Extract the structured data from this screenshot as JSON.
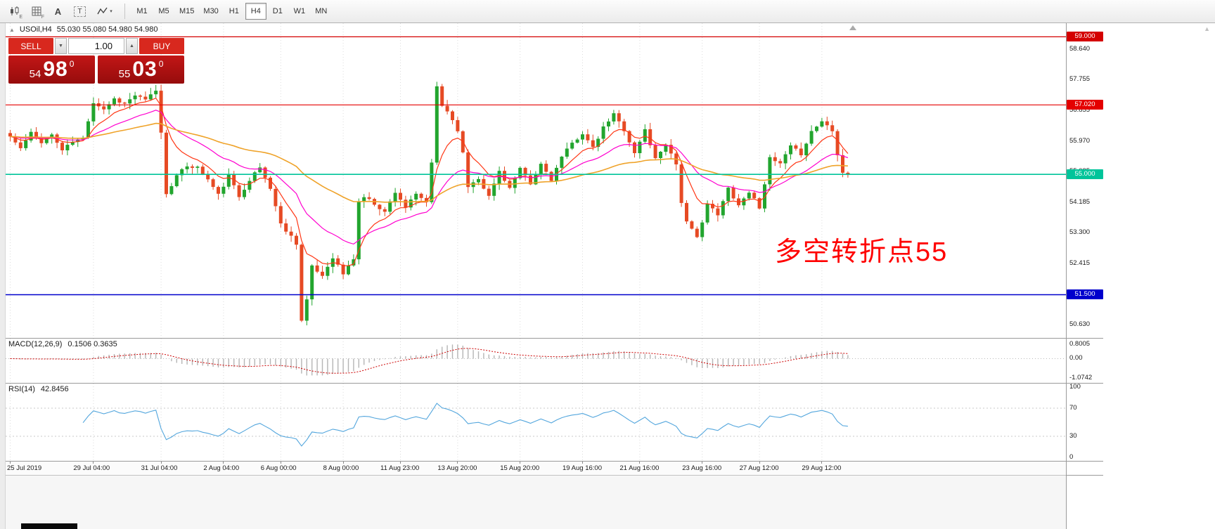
{
  "header": {
    "symbol": "USOil,H4",
    "ohlc": "55.030 55.080 54.980 54.980"
  },
  "toolbar": {
    "icons": [
      {
        "name": "chart-type-icon",
        "sub": "E"
      },
      {
        "name": "grid-icon",
        "sub": "F"
      },
      {
        "name": "text-annotation-icon",
        "glyph": "A"
      },
      {
        "name": "textbox-icon",
        "glyph": "T"
      },
      {
        "name": "drawing-tools-icon",
        "caret": "▾"
      }
    ],
    "timeframes": [
      {
        "label": "M1",
        "active": false
      },
      {
        "label": "M5",
        "active": false
      },
      {
        "label": "M15",
        "active": false
      },
      {
        "label": "M30",
        "active": false
      },
      {
        "label": "H1",
        "active": false
      },
      {
        "label": "H4",
        "active": true
      },
      {
        "label": "D1",
        "active": false
      },
      {
        "label": "W1",
        "active": false
      },
      {
        "label": "MN",
        "active": false
      }
    ]
  },
  "trade_panel": {
    "sell_label": "SELL",
    "buy_label": "BUY",
    "volume": "1.00",
    "sell_small": "54",
    "sell_big": "98",
    "sell_sup": "0",
    "buy_small": "55",
    "buy_big": "03",
    "buy_sup": "0"
  },
  "annotation": {
    "text": "多空转折点55",
    "color": "#ff0000"
  },
  "price_scale": {
    "ticks": [
      {
        "label": "58.640",
        "value": 58.64
      },
      {
        "label": "57.755",
        "value": 57.755
      },
      {
        "label": "56.855",
        "value": 56.855
      },
      {
        "label": "55.970",
        "value": 55.97
      },
      {
        "label": "55.085",
        "value": 55.085
      },
      {
        "label": "54.185",
        "value": 54.185
      },
      {
        "label": "53.300",
        "value": 53.3
      },
      {
        "label": "52.415",
        "value": 52.415
      },
      {
        "label": "51.530",
        "value": 51.53
      },
      {
        "label": "50.630",
        "value": 50.63
      }
    ],
    "badges": [
      {
        "label": "59.000",
        "value": 59.0,
        "bg": "#d40000"
      },
      {
        "label": "57.020",
        "value": 57.02,
        "bg": "#e40000"
      },
      {
        "label": "55.000",
        "value": 55.0,
        "bg": "#00c49a"
      },
      {
        "label": "51.500",
        "value": 51.5,
        "bg": "#0000cd"
      }
    ]
  },
  "macd_panel": {
    "label": "MACD(12,26,9)",
    "values": "0.1506 0.3635",
    "scale": [
      {
        "label": "0.8005",
        "value": 0.8005
      },
      {
        "label": "0.00",
        "value": 0
      },
      {
        "label": "-1.0742",
        "value": -1.0742
      }
    ]
  },
  "rsi_panel": {
    "label": "RSI(14)",
    "value": "42.8456",
    "scale": [
      {
        "label": "100",
        "value": 100
      },
      {
        "label": "70",
        "value": 70
      },
      {
        "label": "30",
        "value": 30
      },
      {
        "label": "0",
        "value": 0
      }
    ],
    "levels": [
      70,
      30
    ]
  },
  "time_axis": {
    "ticks": [
      {
        "i": 0,
        "label": "25 Jul 2019"
      },
      {
        "i": 16,
        "label": "29 Jul 04:00"
      },
      {
        "i": 29,
        "label": "31 Jul 04:00"
      },
      {
        "i": 41,
        "label": "2 Aug 04:00"
      },
      {
        "i": 52,
        "label": "6 Aug 00:00"
      },
      {
        "i": 64,
        "label": "8 Aug 00:00"
      },
      {
        "i": 75,
        "label": "11 Aug 23:00"
      },
      {
        "i": 86,
        "label": "13 Aug 20:00"
      },
      {
        "i": 98,
        "label": "15 Aug 20:00"
      },
      {
        "i": 110,
        "label": "19 Aug 16:00"
      },
      {
        "i": 121,
        "label": "21 Aug 16:00"
      },
      {
        "i": 133,
        "label": "23 Aug 16:00"
      },
      {
        "i": 144,
        "label": "27 Aug 12:00"
      },
      {
        "i": 156,
        "label": "29 Aug 12:00"
      }
    ]
  },
  "colors": {
    "up": "#22a52e",
    "down": "#e64a24",
    "ma_fast": "#ff3614",
    "ma_mid": "#ff00cf",
    "ma_slow": "#efa32a",
    "macd_hist": "#b5b5b5",
    "macd_signal": "#cc0000",
    "rsi": "#53a6dd",
    "grid": "#dcdcdc",
    "sell_buy_red": "#d8281e",
    "big_box_red": "#b11111",
    "annotation": "#ff0000"
  },
  "chart_data": {
    "type": "candlestick",
    "symbol": "USOil",
    "timeframe": "H4",
    "ohlc_current": {
      "open": 55.03,
      "high": 55.08,
      "low": 54.98,
      "close": 54.98
    },
    "bid": 54.98,
    "ask": 55.03,
    "count": 162,
    "seed": 11,
    "y_range": [
      50.243,
      59.396
    ],
    "ma_periods": [
      8,
      21,
      55
    ],
    "hlines": [
      59.0,
      57.02,
      55.0,
      51.5
    ],
    "macd": {
      "fast": 12,
      "slow": 26,
      "signal": 9,
      "current_macd": 0.1506,
      "current_signal": 0.3635,
      "range": [
        -1.0742,
        0.8005
      ]
    },
    "rsi": {
      "period": 14,
      "current": 42.8456,
      "levels": [
        70,
        30
      ]
    },
    "price_pivots": [
      [
        0,
        56.1
      ],
      [
        2,
        55.75
      ],
      [
        4,
        56.2
      ],
      [
        6,
        55.95
      ],
      [
        8,
        56.15
      ],
      [
        10,
        55.7
      ],
      [
        12,
        55.95
      ],
      [
        14,
        56.05
      ],
      [
        16,
        57.1
      ],
      [
        18,
        56.9
      ],
      [
        20,
        57.2
      ],
      [
        22,
        57.05
      ],
      [
        24,
        57.3
      ],
      [
        26,
        57.15
      ],
      [
        28,
        57.45
      ],
      [
        29,
        56.2
      ],
      [
        30,
        54.45
      ],
      [
        32,
        54.95
      ],
      [
        34,
        55.25
      ],
      [
        36,
        55.2
      ],
      [
        38,
        54.85
      ],
      [
        40,
        54.4
      ],
      [
        42,
        54.95
      ],
      [
        44,
        54.35
      ],
      [
        46,
        54.85
      ],
      [
        48,
        55.2
      ],
      [
        50,
        54.6
      ],
      [
        52,
        53.55
      ],
      [
        54,
        53.2
      ],
      [
        55,
        53.0
      ],
      [
        56,
        50.75
      ],
      [
        57,
        51.35
      ],
      [
        58,
        52.3
      ],
      [
        60,
        52.05
      ],
      [
        62,
        52.6
      ],
      [
        64,
        52.1
      ],
      [
        66,
        52.55
      ],
      [
        67,
        54.2
      ],
      [
        68,
        54.35
      ],
      [
        70,
        54.15
      ],
      [
        72,
        53.9
      ],
      [
        74,
        54.5
      ],
      [
        76,
        54.05
      ],
      [
        78,
        54.4
      ],
      [
        80,
        54.2
      ],
      [
        81,
        55.3
      ],
      [
        82,
        57.55
      ],
      [
        83,
        57.0
      ],
      [
        84,
        56.85
      ],
      [
        86,
        56.3
      ],
      [
        87,
        55.6
      ],
      [
        88,
        54.65
      ],
      [
        90,
        54.9
      ],
      [
        92,
        54.35
      ],
      [
        94,
        55.1
      ],
      [
        96,
        54.6
      ],
      [
        98,
        55.15
      ],
      [
        100,
        54.7
      ],
      [
        102,
        55.3
      ],
      [
        104,
        54.85
      ],
      [
        106,
        55.5
      ],
      [
        108,
        55.9
      ],
      [
        110,
        56.2
      ],
      [
        112,
        55.75
      ],
      [
        114,
        56.35
      ],
      [
        116,
        56.75
      ],
      [
        118,
        56.3
      ],
      [
        120,
        55.6
      ],
      [
        122,
        56.3
      ],
      [
        124,
        55.45
      ],
      [
        126,
        55.9
      ],
      [
        128,
        55.3
      ],
      [
        129,
        54.2
      ],
      [
        130,
        53.6
      ],
      [
        132,
        53.15
      ],
      [
        134,
        54.15
      ],
      [
        136,
        53.8
      ],
      [
        138,
        54.6
      ],
      [
        140,
        54.1
      ],
      [
        142,
        54.5
      ],
      [
        144,
        54.05
      ],
      [
        146,
        55.45
      ],
      [
        148,
        55.3
      ],
      [
        150,
        55.8
      ],
      [
        152,
        55.6
      ],
      [
        154,
        56.25
      ],
      [
        156,
        56.55
      ],
      [
        158,
        56.3
      ],
      [
        159,
        55.6
      ],
      [
        160,
        55.05
      ],
      [
        161,
        54.98
      ]
    ]
  }
}
